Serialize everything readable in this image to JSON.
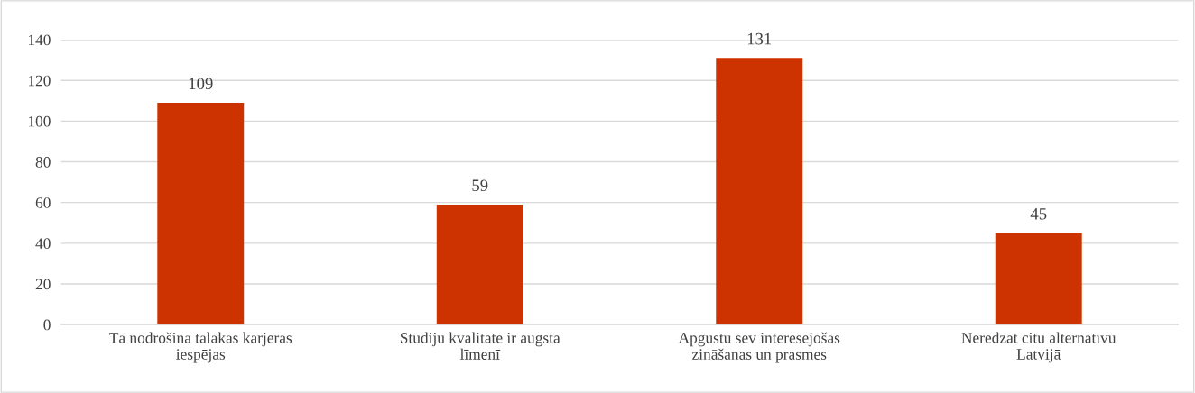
{
  "chart_data": {
    "type": "bar",
    "categories": [
      "Tā nodrošina tālākās karjeras iespējas",
      "Studiju kvalitāte ir augstā līmenī",
      "Apgūstu sev interesējošās zināšanas un prasmes",
      "Neredzat citu alternatīvu Latvijā"
    ],
    "values": [
      109,
      59,
      131,
      45
    ],
    "color": "#cc3300",
    "ylim": [
      0,
      140
    ],
    "yticks": [
      0,
      20,
      40,
      60,
      80,
      100,
      120,
      140
    ],
    "grid": "y",
    "data_labels": true,
    "legend": false
  }
}
